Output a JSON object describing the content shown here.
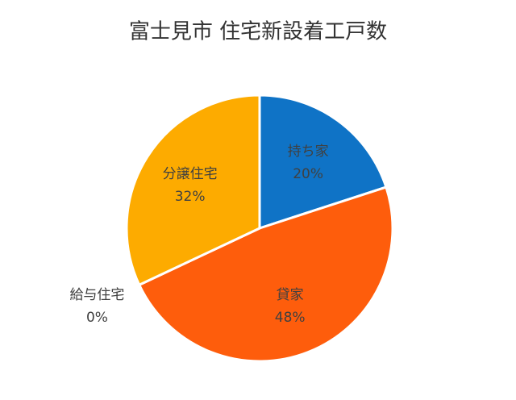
{
  "chart_data": {
    "type": "pie",
    "title": "富士見市 住宅新設着工戸数",
    "categories": [
      "持ち家",
      "貸家",
      "給与住宅",
      "分譲住宅"
    ],
    "values": [
      20,
      48,
      0,
      32
    ],
    "value_labels": [
      "20%",
      "48%",
      "0%",
      "32%"
    ],
    "colors": [
      "#0f73c6",
      "#fe5d0c",
      "#a5a5a5",
      "#fdab00"
    ]
  }
}
